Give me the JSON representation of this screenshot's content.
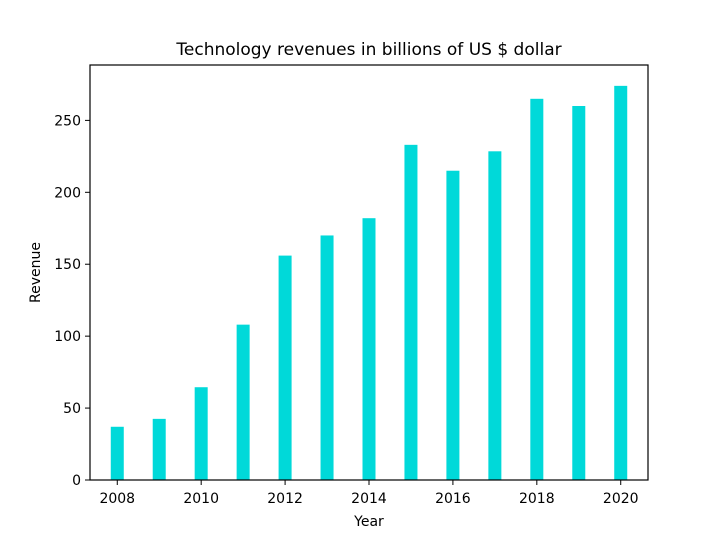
{
  "chart_data": {
    "type": "bar",
    "title": "Technology revenues in billions of US $ dollar",
    "xlabel": "Year",
    "ylabel": "Revenue",
    "categories": [
      2008,
      2009,
      2010,
      2011,
      2012,
      2013,
      2014,
      2015,
      2016,
      2017,
      2018,
      2019,
      2020
    ],
    "values": [
      37,
      42.5,
      64.5,
      108,
      156,
      170,
      182,
      233,
      215,
      228.5,
      265,
      260,
      274
    ],
    "xticks": [
      2008,
      2010,
      2012,
      2014,
      2016,
      2018,
      2020
    ],
    "yticks": [
      0,
      50,
      100,
      150,
      200,
      250
    ],
    "xlim": [
      2007.35,
      2020.65
    ],
    "ylim": [
      0,
      288.5
    ],
    "bar_color": "#00d9d9",
    "grid": false
  }
}
